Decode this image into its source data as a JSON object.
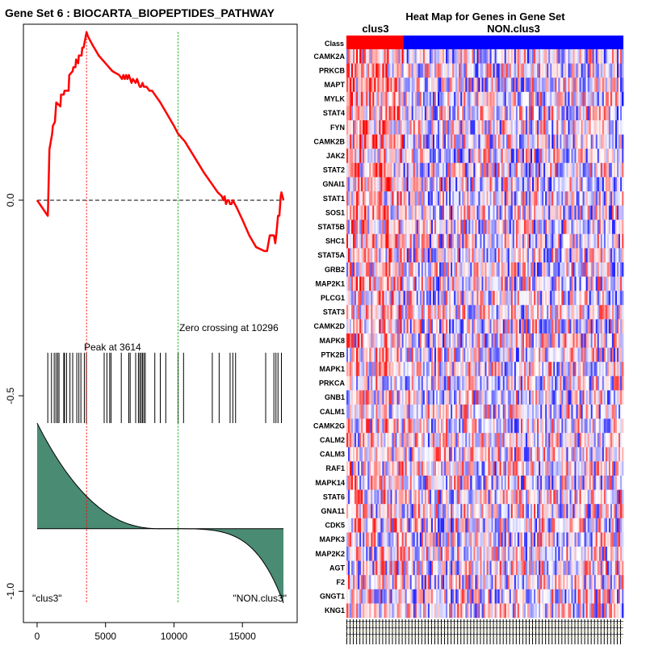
{
  "chart_data": [
    {
      "type": "line",
      "title": "Gene Set  6 : BIOCARTA_BIOPEPTIDES_PATHWAY",
      "xlabel": "",
      "ylabel": "",
      "xlim": [
        -1000,
        19000
      ],
      "ylim": [
        -1.08,
        0.45
      ],
      "x_ticks": [
        0,
        5000,
        10000,
        15000
      ],
      "x_tick_labels": [
        "0",
        "5000",
        "10000",
        "15000"
      ],
      "y_ticks": [
        0.0,
        -0.5,
        -1.0
      ],
      "y_tick_labels": [
        "0.0",
        "-0.5",
        "-1.0"
      ],
      "colors": {
        "es_line": "#ff0000",
        "peak_line": "#ff0000",
        "zero_cross_line": "#00aa00",
        "baseline": "#000000",
        "ranked_fill": "#4a8b74"
      },
      "series": [
        {
          "name": "running enrichment score",
          "x": [
            0,
            780,
            800,
            900,
            1100,
            1150,
            1300,
            1400,
            1700,
            1750,
            1950,
            2000,
            2300,
            2350,
            2600,
            2650,
            2800,
            2850,
            3000,
            3050,
            3250,
            3300,
            3400,
            3450,
            3614,
            3700,
            4000,
            4500,
            5000,
            5500,
            6000,
            6200,
            6300,
            6400,
            6500,
            6600,
            6700,
            6800,
            6900,
            7000,
            7200,
            7300,
            7400,
            7500,
            7600,
            7700,
            7800,
            7900,
            8000,
            8200,
            8300,
            8400,
            8600,
            9000,
            9500,
            10000,
            10296,
            10800,
            11500,
            12200,
            12800,
            13000,
            13200,
            13500,
            13600,
            13700,
            13800,
            13900,
            14000,
            14100,
            14200,
            14300,
            14600,
            15000,
            15500,
            16000,
            16600,
            16800,
            17000,
            17300,
            17400,
            17500,
            17600,
            17700,
            17800,
            17850,
            18000
          ],
          "values": [
            0.0,
            -0.04,
            -0.02,
            0.13,
            0.17,
            0.19,
            0.2,
            0.25,
            0.24,
            0.27,
            0.27,
            0.28,
            0.28,
            0.32,
            0.33,
            0.34,
            0.34,
            0.36,
            0.35,
            0.37,
            0.37,
            0.39,
            0.39,
            0.4,
            0.43,
            0.42,
            0.4,
            0.37,
            0.35,
            0.33,
            0.32,
            0.31,
            0.32,
            0.31,
            0.32,
            0.31,
            0.32,
            0.31,
            0.3,
            0.31,
            0.3,
            0.31,
            0.3,
            0.29,
            0.29,
            0.3,
            0.29,
            0.29,
            0.29,
            0.28,
            0.28,
            0.28,
            0.27,
            0.25,
            0.22,
            0.19,
            0.17,
            0.15,
            0.11,
            0.07,
            0.04,
            0.03,
            0.02,
            0.01,
            0.0,
            0.01,
            -0.01,
            0.0,
            0.0,
            -0.01,
            -0.01,
            0.0,
            -0.02,
            -0.05,
            -0.09,
            -0.12,
            -0.13,
            -0.13,
            -0.09,
            -0.09,
            -0.11,
            -0.08,
            -0.04,
            -0.04,
            0.01,
            0.02,
            0.0
          ]
        }
      ],
      "reference_line_y": 0.0,
      "peak_x": 3614,
      "zero_crossing_x": 10296,
      "gene_hits": [
        780,
        1050,
        1250,
        1380,
        1500,
        1600,
        1950,
        2000,
        2150,
        2400,
        2600,
        2900,
        3050,
        3200,
        3450,
        3600,
        4900,
        5100,
        5300,
        5400,
        6150,
        6700,
        6800,
        7200,
        7400,
        7500,
        7600,
        7700,
        7800,
        7900,
        8600,
        9000,
        9400,
        10300,
        10700,
        12800,
        13300,
        14100,
        14300,
        14500,
        16700,
        17300,
        17450,
        17600,
        17850
      ],
      "hit_band_y": [
        -0.39,
        -0.57
      ],
      "ranked_metric": {
        "x_start": 0,
        "x_end": 18000,
        "top_y": -0.57,
        "baseline_y": -0.84,
        "bottom_y": -1.03
      },
      "annotations": {
        "peak": "Peak at 3614",
        "zero_cross": "Zero crossing at 10296",
        "left_class": "\"clus3\"",
        "right_class": "\"NON.clus3\""
      }
    },
    {
      "type": "heatmap",
      "title_line1": "Heat Map for Genes in Gene Set",
      "class_row_label": "Class",
      "classes": [
        {
          "name": "clus3",
          "color": "#ff0000",
          "fraction": 0.205
        },
        {
          "name": "NON.clus3",
          "color": "#0000ff",
          "fraction": 0.795
        }
      ],
      "genes": [
        "CAMK2A",
        "PRKCB",
        "MAPT",
        "MYLK",
        "STAT4",
        "FYN",
        "CAMK2B",
        "JAK2",
        "STAT2",
        "GNAI1",
        "STAT1",
        "SOS1",
        "STAT5B",
        "SHC1",
        "STAT5A",
        "GRB2",
        "MAP2K1",
        "PLCG1",
        "STAT3",
        "CAMK2D",
        "MAPK8",
        "PTK2B",
        "MAPK1",
        "PRKCA",
        "GNB1",
        "CALM1",
        "CAMK2G",
        "CALM2",
        "CALM3",
        "RAF1",
        "MAPK14",
        "STAT6",
        "GNA11",
        "CDK5",
        "MAPK3",
        "MAP2K2",
        "AGT",
        "F2",
        "GNGT1",
        "KNG1"
      ],
      "n_samples": 170,
      "color_scale": {
        "low": "#0000ff",
        "mid": "#ffffff",
        "high": "#ff0000"
      }
    }
  ]
}
